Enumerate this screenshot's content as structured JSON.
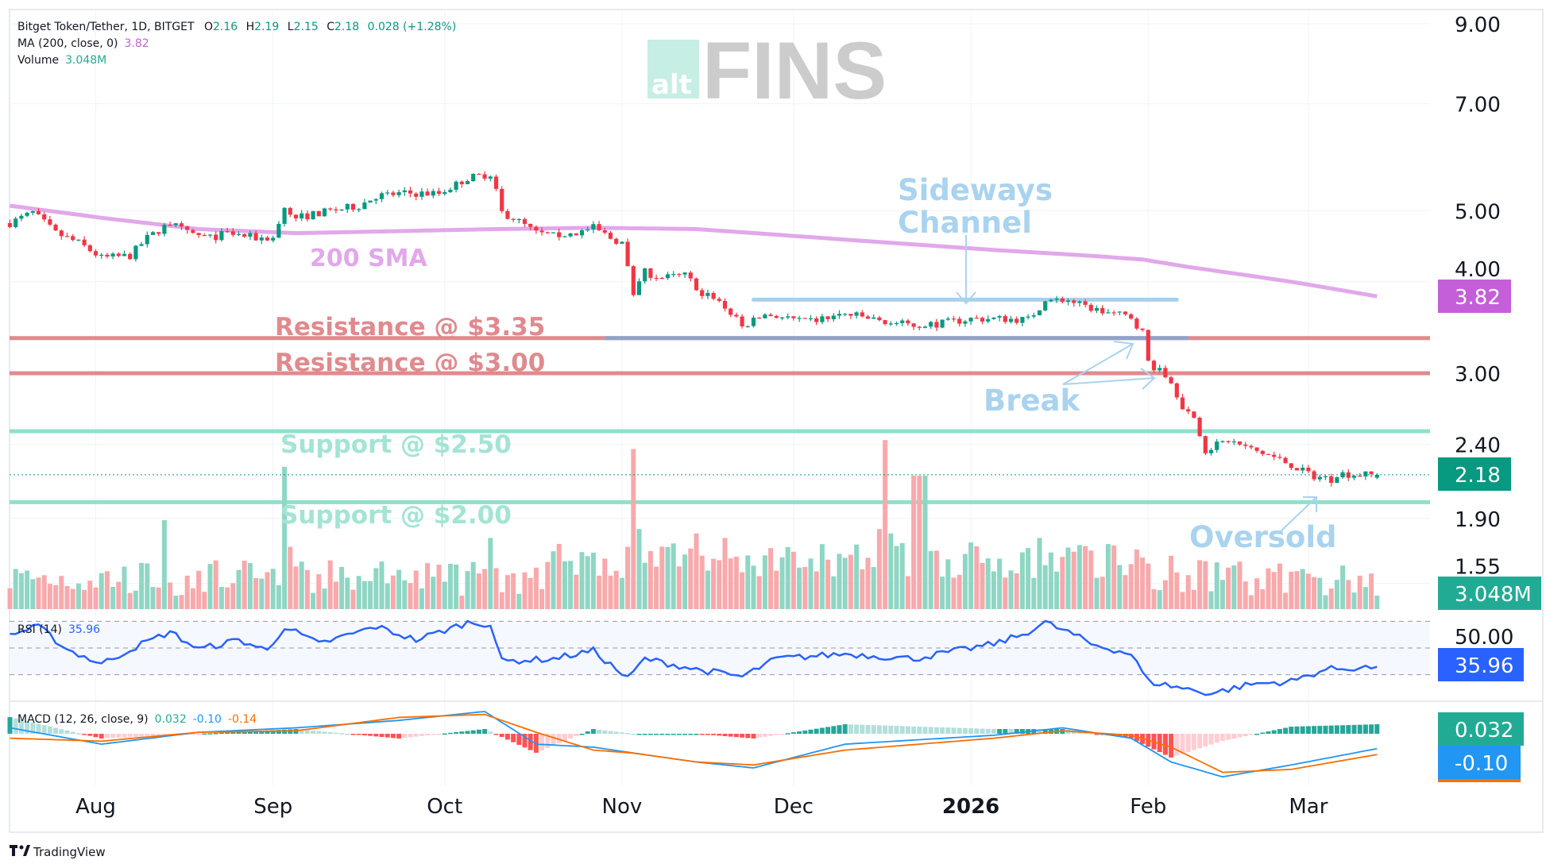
{
  "legend": {
    "symbol": "Bitget Token/Tether, 1D, BITGET",
    "o_label": "O",
    "o": "2.16",
    "h_label": "H",
    "h": "2.19",
    "l_label": "L",
    "l": "2.15",
    "c_label": "C",
    "c": "2.18",
    "change": "0.028 (+1.28%)",
    "ma_label": "MA (200, close, 0)",
    "ma_value": "3.82",
    "volume_label": "Volume",
    "volume_value": "3.048M",
    "rsi_label": "RSI (14)",
    "rsi_value": "35.96",
    "macd_label": "MACD (12, 26, close, 9)",
    "macd_hist": "0.032",
    "macd_line": "-0.10",
    "macd_signal": "-0.14"
  },
  "watermark": {
    "alt": "alt",
    "fins": "FINS"
  },
  "footer": {
    "brand": "TradingView"
  },
  "colors": {
    "up": "#089981",
    "down": "#f23645",
    "vol_up": "#8fd6c4",
    "vol_down": "#f7a9ab",
    "sma": "#e1a8ea",
    "resistance": "#e08a8e",
    "support": "#8ee0cc",
    "annotation": "#a9d3ee",
    "rsi": "#2962ff",
    "macd": "#2196f3",
    "signal": "#ff6d00"
  },
  "annotations": {
    "sma": "200 SMA",
    "res1": "Resistance @ $3.35",
    "res2": "Resistance @ $3.00",
    "sup1": "Support @ $2.50",
    "sup2": "Support @ $2.00",
    "sideways1": "Sideways",
    "sideways2": "Channel",
    "break": "Break",
    "oversold": "Oversold"
  },
  "price_axis": [
    "9.00",
    "7.00",
    "5.00",
    "4.00",
    "3.00",
    "2.40",
    "1.90",
    "1.55"
  ],
  "rsi_axis": "50.00",
  "badges": {
    "sma": "3.82",
    "price": "2.18",
    "volume": "3.048M",
    "rsi": "35.96",
    "macd_hist": "0.032",
    "macd": "-0.10"
  },
  "chart_data": {
    "type": "candlestick",
    "title": "Bitget Token/Tether, 1D, BITGET",
    "scale": "log",
    "ylim": [
      1.45,
      9.5
    ],
    "time_labels": [
      {
        "label": "Aug",
        "day": 15
      },
      {
        "label": "Sep",
        "day": 46
      },
      {
        "label": "Oct",
        "day": 76
      },
      {
        "label": "Nov",
        "day": 107
      },
      {
        "label": "Dec",
        "day": 137
      },
      {
        "label": "2026",
        "day": 168
      },
      {
        "label": "Feb",
        "day": 199
      },
      {
        "label": "Mar",
        "day": 227
      }
    ],
    "close_anchors": [
      [
        0,
        4.81
      ],
      [
        4,
        4.97
      ],
      [
        8,
        4.66
      ],
      [
        12,
        4.52
      ],
      [
        16,
        4.31
      ],
      [
        21,
        4.34
      ],
      [
        24,
        4.59
      ],
      [
        28,
        4.81
      ],
      [
        31,
        4.66
      ],
      [
        35,
        4.59
      ],
      [
        38,
        4.66
      ],
      [
        43,
        4.59
      ],
      [
        46,
        4.59
      ],
      [
        48,
        5.04
      ],
      [
        50,
        4.89
      ],
      [
        56,
        5.0
      ],
      [
        61,
        5.08
      ],
      [
        64,
        5.24
      ],
      [
        69,
        5.28
      ],
      [
        75,
        5.28
      ],
      [
        80,
        5.54
      ],
      [
        84,
        5.62
      ],
      [
        86,
        4.97
      ],
      [
        88,
        4.89
      ],
      [
        92,
        4.66
      ],
      [
        95,
        4.62
      ],
      [
        99,
        4.66
      ],
      [
        102,
        4.74
      ],
      [
        105,
        4.59
      ],
      [
        107,
        4.52
      ],
      [
        109,
        3.81
      ],
      [
        111,
        4.12
      ],
      [
        114,
        4.05
      ],
      [
        118,
        4.08
      ],
      [
        121,
        3.87
      ],
      [
        125,
        3.7
      ],
      [
        128,
        3.47
      ],
      [
        132,
        3.61
      ],
      [
        135,
        3.58
      ],
      [
        139,
        3.52
      ],
      [
        142,
        3.56
      ],
      [
        146,
        3.61
      ],
      [
        149,
        3.58
      ],
      [
        153,
        3.52
      ],
      [
        158,
        3.49
      ],
      [
        163,
        3.51
      ],
      [
        168,
        3.56
      ],
      [
        173,
        3.56
      ],
      [
        178,
        3.55
      ],
      [
        181,
        3.76
      ],
      [
        185,
        3.78
      ],
      [
        187,
        3.72
      ],
      [
        191,
        3.64
      ],
      [
        196,
        3.58
      ],
      [
        198,
        3.41
      ],
      [
        199,
        3.11
      ],
      [
        203,
        2.92
      ],
      [
        205,
        2.71
      ],
      [
        207,
        2.58
      ],
      [
        209,
        2.36
      ],
      [
        213,
        2.43
      ],
      [
        217,
        2.36
      ],
      [
        220,
        2.32
      ],
      [
        224,
        2.25
      ],
      [
        227,
        2.18
      ],
      [
        231,
        2.15
      ],
      [
        232,
        2.19
      ],
      [
        236,
        2.18
      ],
      [
        239,
        2.18
      ]
    ],
    "last_candle": {
      "open": 2.16,
      "high": 2.19,
      "low": 2.15,
      "close": 2.18
    },
    "sma200_anchors": [
      [
        0,
        5.08
      ],
      [
        16,
        4.89
      ],
      [
        33,
        4.72
      ],
      [
        50,
        4.66
      ],
      [
        68,
        4.69
      ],
      [
        85,
        4.72
      ],
      [
        102,
        4.74
      ],
      [
        120,
        4.72
      ],
      [
        137,
        4.62
      ],
      [
        154,
        4.52
      ],
      [
        172,
        4.42
      ],
      [
        189,
        4.34
      ],
      [
        198,
        4.29
      ],
      [
        206,
        4.19
      ],
      [
        224,
        4.0
      ],
      [
        239,
        3.82
      ]
    ],
    "volume_spikes_m": [
      [
        27,
        20
      ],
      [
        48,
        32
      ],
      [
        49,
        14
      ],
      [
        84,
        16
      ],
      [
        95,
        13
      ],
      [
        108,
        14
      ],
      [
        109,
        36
      ],
      [
        110,
        18
      ],
      [
        120,
        17
      ],
      [
        125,
        16
      ],
      [
        152,
        18
      ],
      [
        153,
        38
      ],
      [
        154,
        17
      ],
      [
        158,
        30
      ],
      [
        159,
        30
      ],
      [
        160,
        30
      ],
      [
        180,
        16
      ],
      [
        203,
        12
      ],
      [
        208,
        11
      ],
      [
        226,
        9
      ]
    ],
    "volume_last_m": 3.048,
    "rsi_anchors": [
      [
        0,
        60
      ],
      [
        5,
        66
      ],
      [
        10,
        49
      ],
      [
        16,
        38
      ],
      [
        22,
        51
      ],
      [
        28,
        62
      ],
      [
        33,
        49
      ],
      [
        40,
        56
      ],
      [
        45,
        48
      ],
      [
        48,
        66
      ],
      [
        54,
        53
      ],
      [
        64,
        66
      ],
      [
        71,
        56
      ],
      [
        80,
        69
      ],
      [
        84,
        68
      ],
      [
        86,
        40
      ],
      [
        95,
        42
      ],
      [
        102,
        48
      ],
      [
        108,
        27
      ],
      [
        111,
        42
      ],
      [
        120,
        34
      ],
      [
        128,
        28.5
      ],
      [
        134,
        42
      ],
      [
        146,
        45.6
      ],
      [
        158,
        42
      ],
      [
        172,
        53
      ],
      [
        177,
        60
      ],
      [
        181,
        69
      ],
      [
        186,
        60
      ],
      [
        189,
        53
      ],
      [
        196,
        45.6
      ],
      [
        199,
        25
      ],
      [
        205,
        20
      ],
      [
        210,
        16
      ],
      [
        217,
        23
      ],
      [
        224,
        25
      ],
      [
        230,
        34
      ],
      [
        239,
        35.96
      ]
    ],
    "rsi_levels": [
      70,
      50,
      30
    ],
    "macd_anchors": [
      [
        0,
        0.04,
        -0.03
      ],
      [
        16,
        -0.07,
        -0.05
      ],
      [
        33,
        0.01,
        0.01
      ],
      [
        50,
        0.04,
        0.02
      ],
      [
        68,
        0.09,
        0.11
      ],
      [
        83,
        0.15,
        0.13
      ],
      [
        92,
        -0.07,
        0.01
      ],
      [
        102,
        -0.09,
        -0.11
      ],
      [
        109,
        -0.13,
        -0.13
      ],
      [
        120,
        -0.19,
        -0.19
      ],
      [
        130,
        -0.23,
        -0.21
      ],
      [
        146,
        -0.07,
        -0.11
      ],
      [
        172,
        -0.01,
        -0.03
      ],
      [
        184,
        0.04,
        0.02
      ],
      [
        196,
        -0.03,
        -0.01
      ],
      [
        203,
        -0.19,
        -0.09
      ],
      [
        212,
        -0.29,
        -0.26
      ],
      [
        224,
        -0.21,
        -0.24
      ],
      [
        239,
        -0.1,
        -0.14
      ]
    ],
    "horizontal_levels": [
      {
        "name": "resistance-3.35",
        "price": 3.35
      },
      {
        "name": "resistance-3.00",
        "price": 3.0
      },
      {
        "name": "support-2.50",
        "price": 2.5
      },
      {
        "name": "support-2.00",
        "price": 2.0
      }
    ],
    "channel": {
      "top": 3.78,
      "bottom": 3.35,
      "top_days": [
        130,
        204
      ],
      "bottom_days": [
        104,
        206
      ]
    }
  }
}
